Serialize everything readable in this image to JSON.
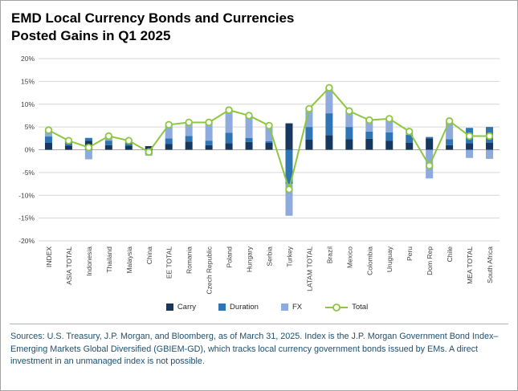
{
  "title": {
    "line1": "EMD Local Currency Bonds and Currencies",
    "line2": "Posted Gains in Q1 2025"
  },
  "colors": {
    "carry": "#17375E",
    "duration": "#2E75B6",
    "fx": "#8FAADC",
    "total_line": "#8DC63F",
    "gridline": "#d6d6d6",
    "zero_line": "#ababab",
    "axis_text": "#3f3f3f",
    "source_text": "#1d4f6e"
  },
  "chart_data": {
    "type": "bar",
    "subtype": "stacked-bars-with-line-overlay",
    "title": "EMD Local Currency Bonds and Currencies Posted Gains in Q1 2025",
    "xlabel": "",
    "ylabel": "",
    "ylim": [
      -20,
      20
    ],
    "ytick_step": 5,
    "ytick_format": "percent",
    "grid": true,
    "legend_position": "bottom",
    "categories": [
      "INDEX",
      "ASIA TOTAL",
      "Indonesia",
      "Thailand",
      "Malaysia",
      "China",
      "EE TOTAL",
      "Romania",
      "Czech Republic",
      "Poland",
      "Hungary",
      "Serbia",
      "Turkey",
      "LATAM TOTAL",
      "Brazil",
      "Mexico",
      "Colombia",
      "Uruguay",
      "Peru",
      "Dom Rep",
      "Chile",
      "MEA TOTAL",
      "South Africa"
    ],
    "series": [
      {
        "name": "Carry",
        "type": "bar",
        "color": "#17375E",
        "values": [
          1.5,
          0.9,
          2.0,
          1.0,
          0.9,
          0.8,
          1.3,
          1.8,
          1.0,
          1.4,
          1.7,
          1.5,
          5.8,
          2.2,
          3.2,
          2.3,
          2.4,
          2.0,
          1.5,
          2.5,
          1.0,
          1.4,
          1.5
        ]
      },
      {
        "name": "Duration",
        "type": "bar",
        "color": "#2E75B6",
        "values": [
          1.4,
          0.8,
          0.6,
          1.0,
          0.6,
          -1.0,
          1.2,
          1.2,
          1.0,
          2.3,
          0.9,
          0.4,
          -7.5,
          2.8,
          4.8,
          2.7,
          1.6,
          1.8,
          1.8,
          0.3,
          1.3,
          3.4,
          3.5
        ]
      },
      {
        "name": "FX",
        "type": "bar",
        "color": "#8FAADC",
        "values": [
          1.4,
          0.3,
          -2.1,
          1.0,
          0.5,
          -0.3,
          3.0,
          3.0,
          4.0,
          5.0,
          4.9,
          3.4,
          -7.0,
          4.0,
          5.6,
          3.5,
          2.5,
          3.0,
          0.7,
          -6.3,
          4.0,
          -1.8,
          -2.0
        ]
      },
      {
        "name": "Total",
        "type": "line",
        "color": "#8DC63F",
        "marker": "open-circle",
        "values": [
          4.3,
          2.0,
          0.5,
          3.0,
          2.0,
          -0.5,
          5.5,
          6.0,
          6.0,
          8.7,
          7.5,
          5.3,
          -8.7,
          9.0,
          13.6,
          8.5,
          6.5,
          6.8,
          4.0,
          -3.5,
          6.3,
          3.0,
          3.0
        ]
      }
    ]
  },
  "legend": {
    "carry_label": "Carry",
    "duration_label": "Duration",
    "fx_label": "FX",
    "total_label": "Total"
  },
  "source_text": "Sources: U.S. Treasury, J.P. Morgan, and Bloomberg, as of March 31, 2025. Index is the J.P. Morgan Government Bond Index–Emerging Markets Global Diversified (GBIEM-GD), which tracks local currency government bonds issued by EMs. A direct investment in an unmanaged index is not possible."
}
